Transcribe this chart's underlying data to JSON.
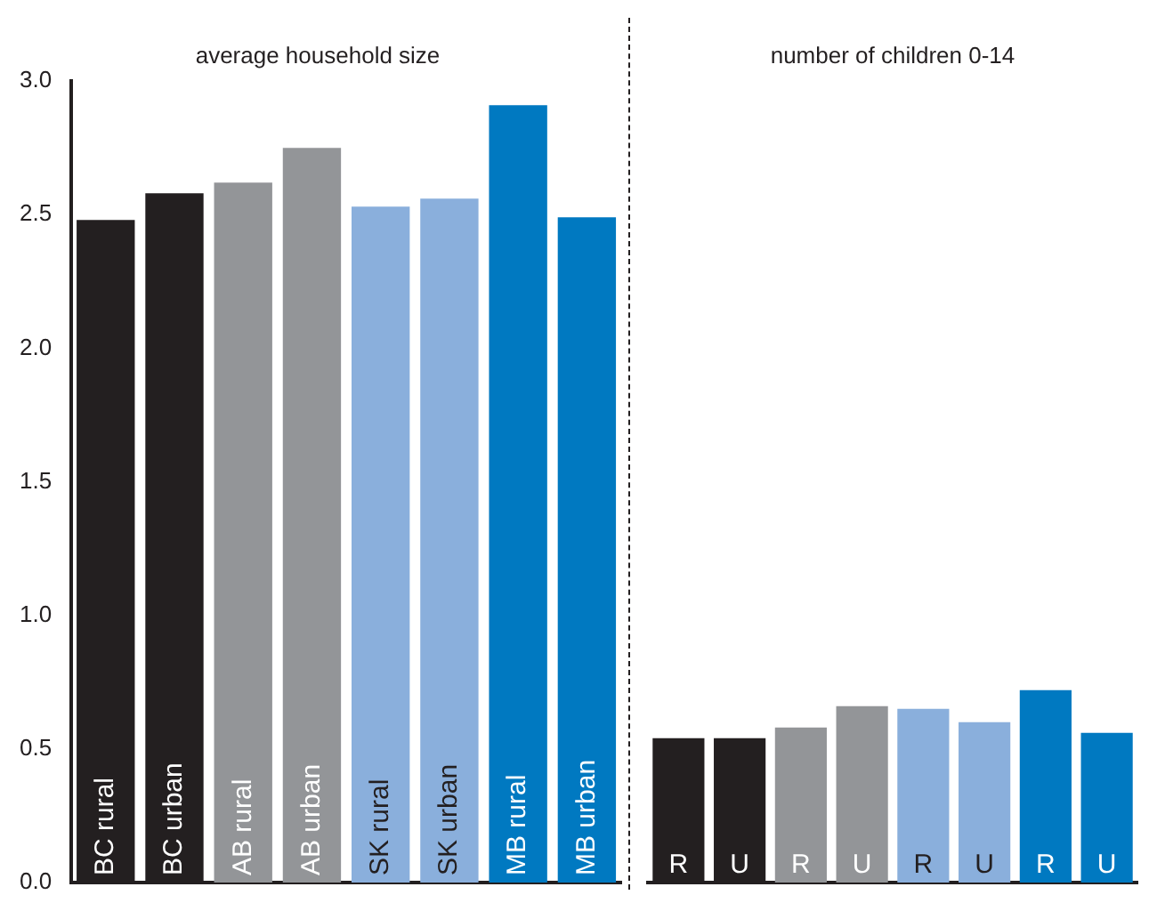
{
  "chart_data": [
    {
      "type": "bar",
      "title": "average household size",
      "categories": [
        "BC rural",
        "BC urban",
        "AB rural",
        "AB urban",
        "SK rural",
        "SK urban",
        "MB rural",
        "MB urban"
      ],
      "values": [
        2.48,
        2.58,
        2.62,
        2.75,
        2.53,
        2.56,
        2.91,
        2.49
      ],
      "colors": [
        "#231f20",
        "#231f20",
        "#939598",
        "#939598",
        "#8aafdc",
        "#8aafdc",
        "#0079c1",
        "#0079c1"
      ],
      "ylim": [
        0,
        3
      ],
      "yticks": [
        {
          "value": 0,
          "label": "0.0"
        },
        {
          "value": 0.5,
          "label": "0.5"
        },
        {
          "value": 1,
          "label": "1.0"
        },
        {
          "value": 1.5,
          "label": "1.5"
        },
        {
          "value": 2,
          "label": "2.0"
        },
        {
          "value": 2.5,
          "label": "2.5"
        },
        {
          "value": 3,
          "label": "3.0"
        }
      ],
      "grid": false,
      "legend": false
    },
    {
      "type": "bar",
      "title": "number of children 0-14",
      "categories": [
        "R",
        "U",
        "R",
        "U",
        "R",
        "U",
        "R",
        "U"
      ],
      "values": [
        0.54,
        0.54,
        0.58,
        0.66,
        0.65,
        0.6,
        0.72,
        0.56
      ],
      "colors": [
        "#231f20",
        "#231f20",
        "#939598",
        "#939598",
        "#8aafdc",
        "#8aafdc",
        "#0079c1",
        "#0079c1"
      ],
      "ylim": [
        0,
        3
      ],
      "tick_labels": "x",
      "grid": false,
      "legend": false
    }
  ]
}
